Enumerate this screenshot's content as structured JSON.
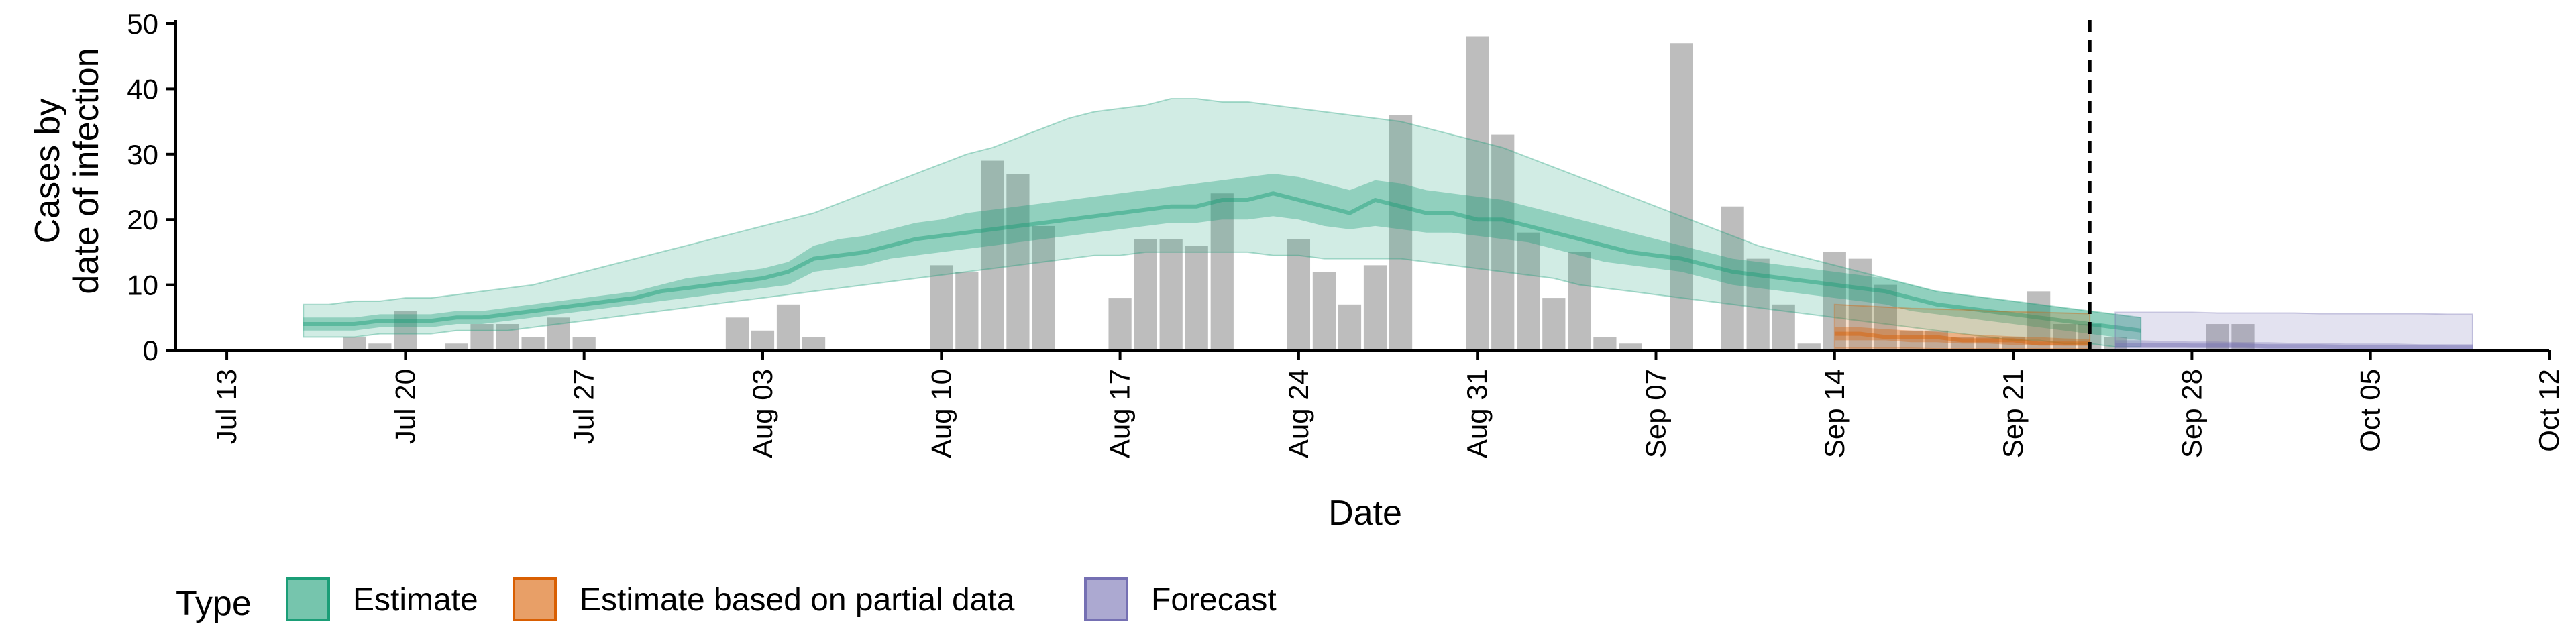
{
  "chart_data": {
    "type": "bar+ribbon",
    "title": "",
    "xlabel": "Date",
    "ylabel_lines": [
      "Cases by",
      "date of infection"
    ],
    "ylim": [
      0,
      50
    ],
    "y_ticks": [
      0,
      10,
      20,
      30,
      40,
      50
    ],
    "x_range": [
      "2020-07-11",
      "2020-10-12"
    ],
    "x_ticks": [
      {
        "date": "2020-07-13",
        "label": "Jul 13"
      },
      {
        "date": "2020-07-20",
        "label": "Jul 20"
      },
      {
        "date": "2020-07-27",
        "label": "Jul 27"
      },
      {
        "date": "2020-08-03",
        "label": "Aug 03"
      },
      {
        "date": "2020-08-10",
        "label": "Aug 10"
      },
      {
        "date": "2020-08-17",
        "label": "Aug 17"
      },
      {
        "date": "2020-08-24",
        "label": "Aug 24"
      },
      {
        "date": "2020-08-31",
        "label": "Aug 31"
      },
      {
        "date": "2020-09-07",
        "label": "Sep 07"
      },
      {
        "date": "2020-09-14",
        "label": "Sep 14"
      },
      {
        "date": "2020-09-21",
        "label": "Sep 21"
      },
      {
        "date": "2020-09-28",
        "label": "Sep 28"
      },
      {
        "date": "2020-10-05",
        "label": "Oct 05"
      },
      {
        "date": "2020-10-12",
        "label": "Oct 12"
      }
    ],
    "vline_date": "2020-09-24",
    "bars": {
      "start_date": "2020-07-16",
      "values": [
        0,
        0,
        2,
        1,
        6,
        0,
        1,
        4,
        4,
        2,
        5,
        2,
        0,
        0,
        0,
        0,
        0,
        5,
        3,
        7,
        2,
        0,
        0,
        0,
        0,
        13,
        12,
        29,
        27,
        19,
        0,
        0,
        8,
        17,
        17,
        16,
        24,
        0,
        0,
        17,
        12,
        7,
        13,
        36,
        0,
        0,
        48,
        33,
        18,
        8,
        15,
        2,
        1,
        0,
        47,
        0,
        22,
        14,
        7,
        1,
        15,
        14,
        10,
        3,
        3,
        2,
        2,
        2,
        9,
        4,
        4,
        2,
        0,
        0,
        0,
        4,
        4
      ]
    },
    "series": [
      {
        "name": "Estimate",
        "color": "#1b9e77",
        "start_date": "2020-07-16",
        "median": [
          4,
          4,
          4,
          4.5,
          4.5,
          4.5,
          5,
          5,
          5.5,
          6,
          6.5,
          7,
          7.5,
          8,
          9,
          9.5,
          10,
          10.5,
          11,
          12,
          14,
          14.5,
          15,
          16,
          17,
          17.5,
          18,
          18.5,
          19,
          19.5,
          20,
          20.5,
          21,
          21.5,
          22,
          22,
          23,
          23,
          24,
          23,
          22,
          21,
          23,
          22,
          21,
          21,
          20,
          20,
          19,
          18,
          17,
          16,
          15,
          14.5,
          14,
          13,
          12,
          11.5,
          11,
          10.5,
          10,
          9.5,
          9,
          8,
          7,
          6.5,
          6,
          5.5,
          5,
          4.5,
          4,
          3.5,
          3
        ],
        "inner_lo": [
          3,
          3,
          3,
          3.5,
          3.5,
          3.5,
          4,
          4,
          4.5,
          5,
          5.5,
          6,
          6.5,
          7,
          7.5,
          8,
          8.5,
          9,
          9.5,
          10,
          12,
          12.5,
          13,
          14,
          14.5,
          15,
          15.5,
          16,
          16.5,
          17,
          17.5,
          18,
          18.5,
          19,
          19.5,
          19.5,
          20,
          20,
          20.5,
          20,
          19,
          18.5,
          19,
          18.5,
          18,
          18,
          17.5,
          17,
          16.5,
          15.5,
          14.5,
          13.5,
          13,
          12.5,
          12,
          11,
          10,
          9.5,
          9,
          8.5,
          8,
          7.5,
          7,
          6,
          5.5,
          5,
          4.5,
          4,
          3.5,
          3,
          2.5,
          2,
          1.5
        ],
        "inner_hi": [
          5,
          5,
          5,
          5.5,
          5.5,
          5.5,
          6,
          6,
          6.5,
          7,
          7.5,
          8,
          8.5,
          9,
          10,
          11,
          11.5,
          12,
          12.5,
          13.5,
          16,
          17,
          17.5,
          18.5,
          19.5,
          20,
          21,
          21.5,
          22,
          22.5,
          23,
          23.5,
          24,
          24.5,
          25,
          25.5,
          26,
          26.5,
          27,
          26.5,
          25.5,
          24.5,
          26,
          25.5,
          24.5,
          24,
          23.5,
          23,
          22,
          21,
          20,
          19,
          18,
          17,
          16,
          15,
          14,
          13.5,
          13,
          12.5,
          12,
          11.5,
          11,
          10,
          9,
          8.5,
          8,
          7.5,
          7,
          6.5,
          6,
          5.5,
          5
        ],
        "outer_lo": [
          2,
          2,
          2,
          2.5,
          2.5,
          2.5,
          3,
          3,
          3,
          3.5,
          4,
          4.5,
          5,
          5.5,
          6,
          6.5,
          7,
          7.5,
          8,
          8.5,
          9,
          9.5,
          10,
          10.5,
          11,
          11.5,
          12,
          12.5,
          13,
          13.5,
          14,
          14.5,
          14.5,
          15,
          15,
          15,
          15,
          15,
          14.5,
          14.5,
          14,
          14,
          14,
          14,
          13.5,
          13,
          12.5,
          12,
          11.5,
          11,
          10,
          9.5,
          9,
          8.5,
          8,
          7.5,
          7,
          6.5,
          6,
          5.5,
          5,
          4.5,
          4,
          3.5,
          3,
          2.5,
          2,
          1.5,
          1.5,
          1,
          1,
          0.5,
          0.5
        ],
        "outer_hi": [
          7,
          7,
          7.5,
          7.5,
          8,
          8,
          8.5,
          9,
          9.5,
          10,
          11,
          12,
          13,
          14,
          15,
          16,
          17,
          18,
          19,
          20,
          21,
          22.5,
          24,
          25.5,
          27,
          28.5,
          30,
          31,
          32.5,
          34,
          35.5,
          36.5,
          37,
          37.5,
          38.5,
          38.5,
          38,
          38,
          37.5,
          37,
          36.5,
          36,
          35.5,
          35,
          34,
          33,
          32,
          31,
          29.5,
          28,
          26.5,
          25,
          23.5,
          22,
          20.5,
          19,
          17.5,
          16,
          15,
          14,
          13,
          12,
          11,
          10,
          9,
          8.5,
          8,
          7.5,
          7,
          6.5,
          6,
          5.5,
          5
        ]
      },
      {
        "name": "Estimate based on partial data",
        "color": "#d95f02",
        "start_date": "2020-09-14",
        "median": [
          2.5,
          2.5,
          2,
          2,
          2,
          1.5,
          1.5,
          1.5,
          1,
          1,
          1
        ],
        "inner_lo": [
          1.5,
          1.5,
          1.5,
          1.2,
          1.2,
          1,
          1,
          0.8,
          0.8,
          0.7,
          0.7
        ],
        "inner_hi": [
          3.5,
          3.5,
          3.2,
          3,
          2.8,
          2.5,
          2.3,
          2.1,
          2,
          1.8,
          1.7
        ],
        "outer_lo": [
          0.3,
          0.3,
          0.3,
          0.3,
          0.2,
          0.2,
          0.2,
          0.2,
          0.2,
          0.2,
          0.2
        ],
        "outer_hi": [
          7,
          6.8,
          6.6,
          6.4,
          6.3,
          6.2,
          6,
          5.9,
          5.8,
          5.7,
          5.6
        ]
      },
      {
        "name": "Forecast",
        "color": "#7570b3",
        "start_date": "2020-09-25",
        "median": [
          0.8,
          0.8,
          0.8,
          0.7,
          0.7,
          0.7,
          0.6,
          0.6,
          0.6,
          0.5,
          0.5,
          0.5,
          0.5,
          0.4,
          0.4
        ],
        "inner_lo": [
          0.3,
          0.3,
          0.3,
          0.3,
          0.3,
          0.3,
          0.2,
          0.2,
          0.2,
          0.2,
          0.2,
          0.2,
          0.2,
          0.2,
          0.2
        ],
        "inner_hi": [
          1.5,
          1.5,
          1.4,
          1.3,
          1.3,
          1.2,
          1.2,
          1.1,
          1.1,
          1,
          1,
          1,
          0.9,
          0.9,
          0.9
        ],
        "outer_lo": [
          0,
          0,
          0,
          0,
          0,
          0,
          0,
          0,
          0,
          0,
          0,
          0,
          0,
          0,
          0
        ],
        "outer_hi": [
          5.8,
          5.8,
          5.8,
          5.8,
          5.7,
          5.7,
          5.7,
          5.7,
          5.6,
          5.6,
          5.6,
          5.6,
          5.6,
          5.5,
          5.5
        ]
      }
    ],
    "legend": {
      "title": "Type",
      "position": "bottom-left",
      "items": [
        "Estimate",
        "Estimate based on partial data",
        "Forecast"
      ]
    },
    "colors": {
      "bar": "#bdbdbd",
      "estimate": "#1b9e77",
      "partial": "#d95f02",
      "forecast": "#7570b3"
    }
  }
}
